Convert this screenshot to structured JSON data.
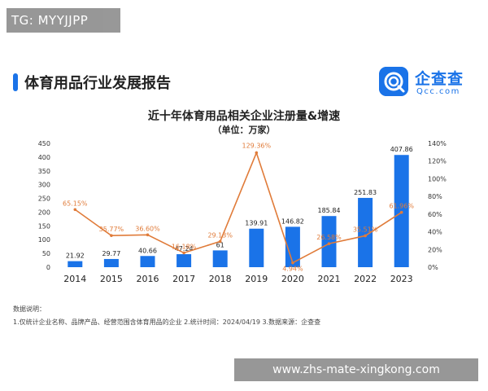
{
  "watermark_top": "TG: MYYJJPP",
  "watermark_bottom": "www.zhs-mate-xingkong.com",
  "report": {
    "title": "体育用品行业发展报告",
    "logo_name": "企查查",
    "logo_sub": "Qcc.com"
  },
  "notes": {
    "heading": "数据说明：",
    "body": "1.仅统计企业名称、品牌产品、经营范围含体育用品的企业  2.统计时间：2024/04/19  3.数据来源：企查查"
  },
  "colors": {
    "bar": "#1a73e8",
    "line": "#e07b39",
    "accent": "#1a73e8"
  },
  "chart_data": {
    "type": "bar+line",
    "title": "近十年体育用品相关企业注册量&增速",
    "subtitle": "（单位：万家）",
    "categories": [
      "2014",
      "2015",
      "2016",
      "2017",
      "2018",
      "2019",
      "2020",
      "2021",
      "2022",
      "2023"
    ],
    "series": [
      {
        "type": "bar",
        "axis": "left",
        "values": [
          21.92,
          29.77,
          40.66,
          47.24,
          61,
          139.91,
          146.82,
          185.84,
          251.83,
          407.86
        ],
        "labels": [
          "21.92",
          "29.77",
          "40.66",
          "47.24",
          "61",
          "139.91",
          "146.82",
          "185.84",
          "251.83",
          "407.86"
        ]
      },
      {
        "type": "line",
        "axis": "right",
        "values": [
          65.15,
          35.77,
          36.6,
          16.18,
          29.13,
          129.36,
          4.94,
          26.58,
          35.51,
          61.96
        ],
        "labels": [
          "65.15%",
          "35.77%",
          "36.60%",
          "16.18%",
          "29.13%",
          "129.36%",
          "4.94%",
          "26.58%",
          "35.51%",
          "61.96%"
        ]
      }
    ],
    "y_left": {
      "min": 0,
      "max": 450,
      "ticks": [
        "0",
        "50",
        "100",
        "150",
        "200",
        "250",
        "300",
        "350",
        "400",
        "450"
      ]
    },
    "y_right": {
      "min": 0,
      "max": 140,
      "ticks": [
        "0%",
        "20%",
        "40%",
        "60%",
        "80%",
        "100%",
        "120%",
        "140%"
      ]
    },
    "grid": false,
    "legend": "none"
  }
}
